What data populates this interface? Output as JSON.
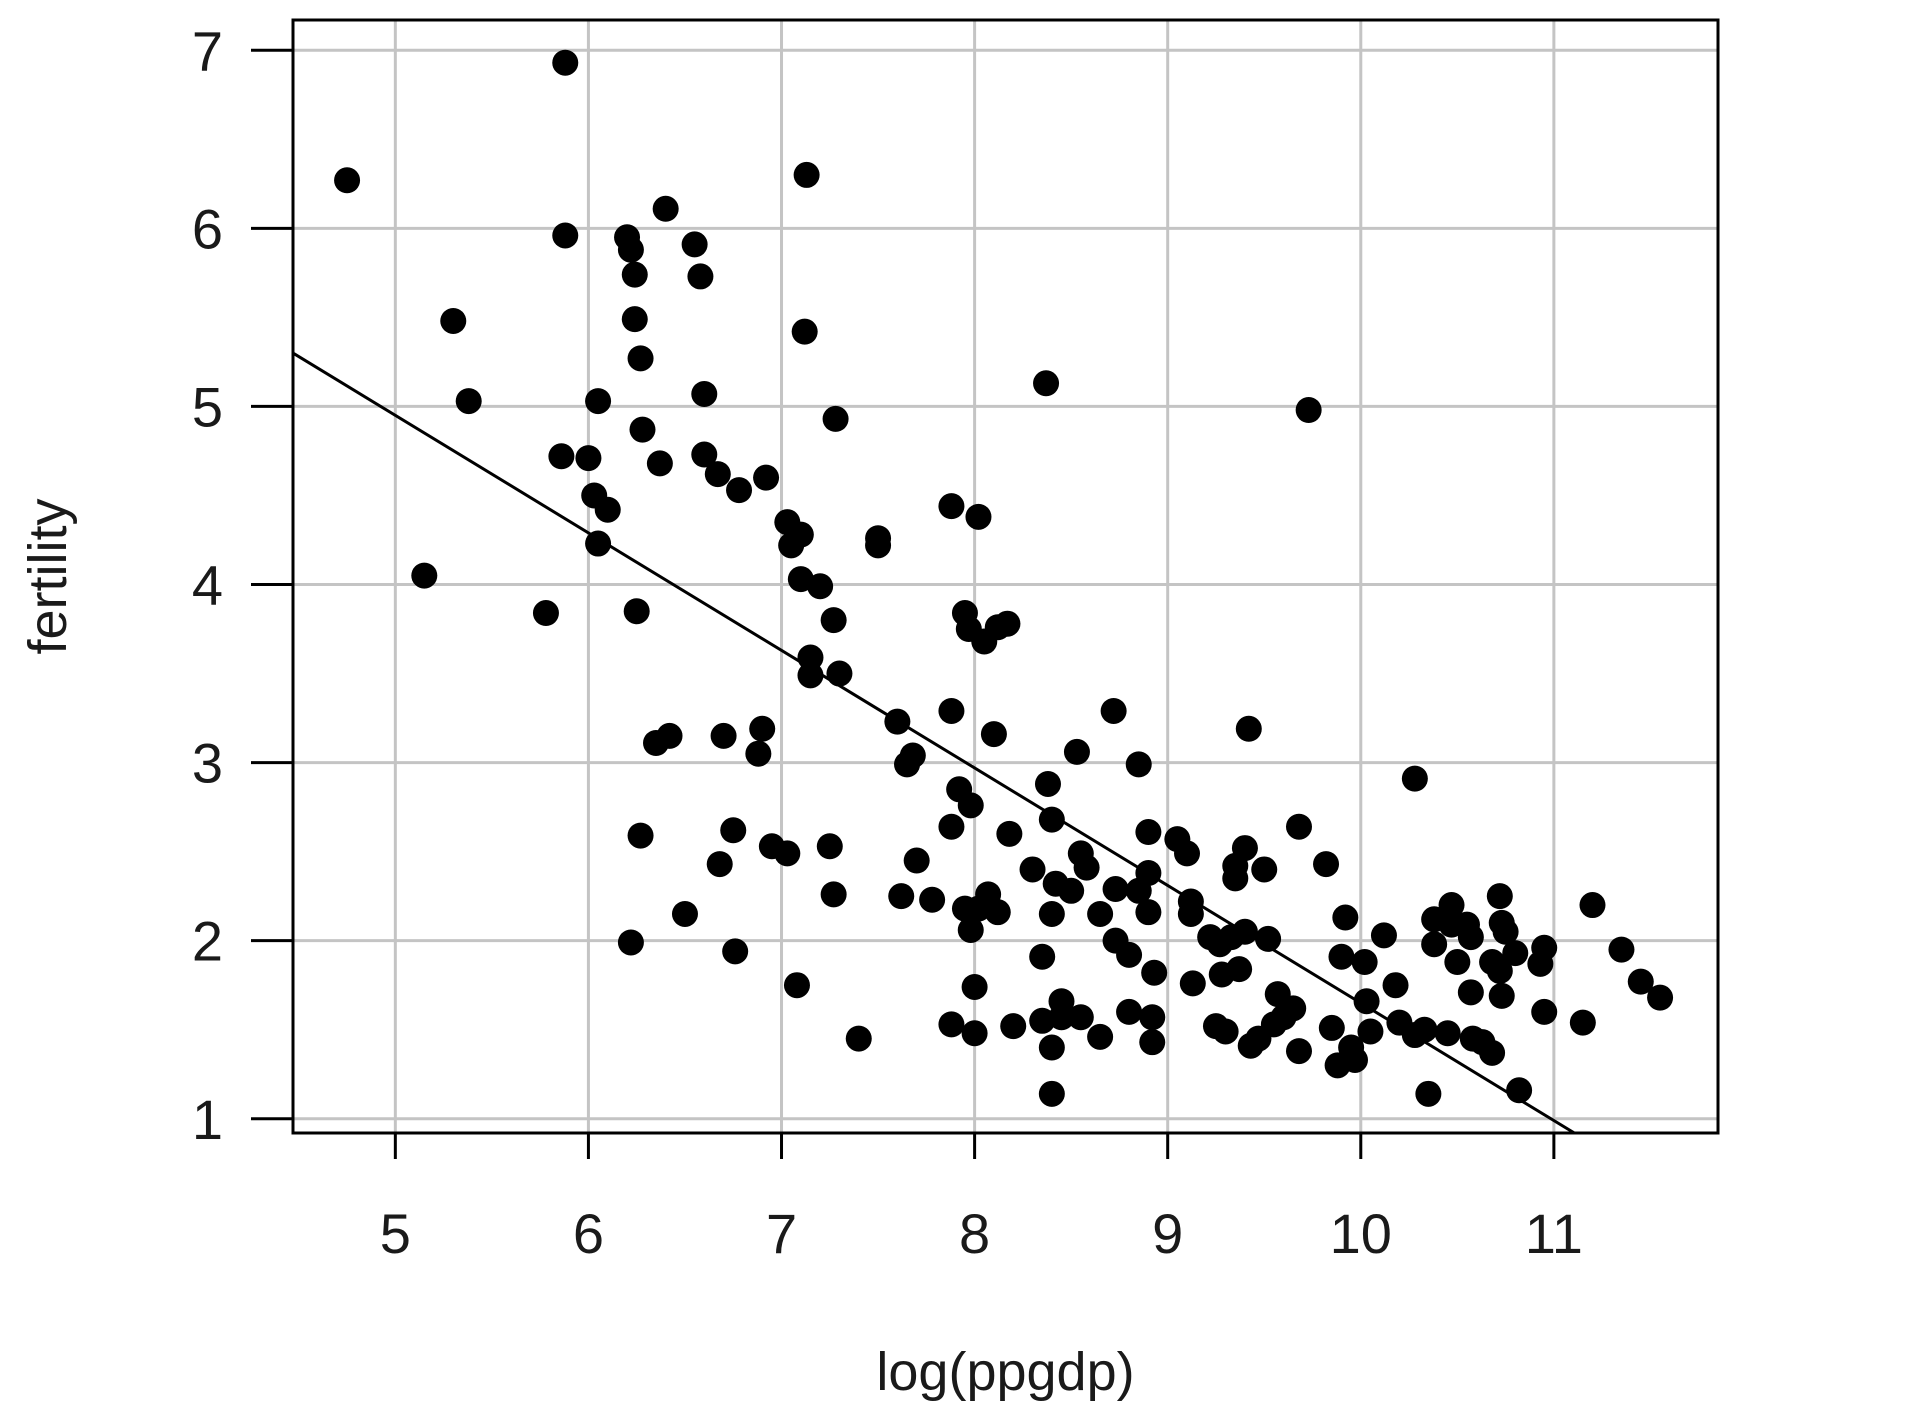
{
  "chart_data": {
    "type": "scatter",
    "title": "",
    "xlabel": "log(ppgdp)",
    "ylabel": "fertility",
    "xlim": [
      4.47,
      11.85
    ],
    "ylim": [
      0.92,
      7.17
    ],
    "x_ticks": [
      "5",
      "6",
      "7",
      "8",
      "9",
      "10",
      "11"
    ],
    "y_ticks": [
      "1",
      "2",
      "3",
      "4",
      "5",
      "6",
      "7"
    ],
    "grid": true,
    "colors": {
      "points": "#000000",
      "grid": "#c4c4c4",
      "frame": "#000000",
      "line": "#000000"
    },
    "fit_line": {
      "intercept": 8.25,
      "slope": -0.66
    },
    "series": [
      {
        "points": [
          [
            4.75,
            6.27
          ],
          [
            5.15,
            4.05
          ],
          [
            5.3,
            5.48
          ],
          [
            5.38,
            5.03
          ],
          [
            5.78,
            3.84
          ],
          [
            5.86,
            4.72
          ],
          [
            5.88,
            5.96
          ],
          [
            5.88,
            6.93
          ],
          [
            6.0,
            4.71
          ],
          [
            6.03,
            4.5
          ],
          [
            6.05,
            4.23
          ],
          [
            6.05,
            5.03
          ],
          [
            6.1,
            4.42
          ],
          [
            6.2,
            5.95
          ],
          [
            6.22,
            5.88
          ],
          [
            6.22,
            1.99
          ],
          [
            6.24,
            5.74
          ],
          [
            6.24,
            5.49
          ],
          [
            6.25,
            3.85
          ],
          [
            6.27,
            5.27
          ],
          [
            6.27,
            2.59
          ],
          [
            6.28,
            4.87
          ],
          [
            6.35,
            3.11
          ],
          [
            6.37,
            4.68
          ],
          [
            6.4,
            6.11
          ],
          [
            6.42,
            3.15
          ],
          [
            6.5,
            2.15
          ],
          [
            6.55,
            5.91
          ],
          [
            6.58,
            5.73
          ],
          [
            6.6,
            5.07
          ],
          [
            6.6,
            4.73
          ],
          [
            6.67,
            4.62
          ],
          [
            6.68,
            2.43
          ],
          [
            6.7,
            3.15
          ],
          [
            6.75,
            2.62
          ],
          [
            6.76,
            1.94
          ],
          [
            6.78,
            4.53
          ],
          [
            6.88,
            3.05
          ],
          [
            6.9,
            3.19
          ],
          [
            6.92,
            4.6
          ],
          [
            6.95,
            2.53
          ],
          [
            7.03,
            2.49
          ],
          [
            7.03,
            4.35
          ],
          [
            7.05,
            4.22
          ],
          [
            7.08,
            1.75
          ],
          [
            7.1,
            4.03
          ],
          [
            7.1,
            4.28
          ],
          [
            7.12,
            5.42
          ],
          [
            7.13,
            6.3
          ],
          [
            7.15,
            3.59
          ],
          [
            7.15,
            3.49
          ],
          [
            7.2,
            3.99
          ],
          [
            7.25,
            2.53
          ],
          [
            7.27,
            2.26
          ],
          [
            7.27,
            3.8
          ],
          [
            7.28,
            4.93
          ],
          [
            7.3,
            3.5
          ],
          [
            7.4,
            1.45
          ],
          [
            7.5,
            4.26
          ],
          [
            7.5,
            4.22
          ],
          [
            7.6,
            3.23
          ],
          [
            7.62,
            2.25
          ],
          [
            7.65,
            2.99
          ],
          [
            7.68,
            3.04
          ],
          [
            7.7,
            2.45
          ],
          [
            7.78,
            2.23
          ],
          [
            7.88,
            4.44
          ],
          [
            7.88,
            3.29
          ],
          [
            7.88,
            2.64
          ],
          [
            7.88,
            1.53
          ],
          [
            7.92,
            2.85
          ],
          [
            7.95,
            3.84
          ],
          [
            7.95,
            2.18
          ],
          [
            7.97,
            3.75
          ],
          [
            7.98,
            2.76
          ],
          [
            7.98,
            2.06
          ],
          [
            8.0,
            1.74
          ],
          [
            8.0,
            1.48
          ],
          [
            8.02,
            4.38
          ],
          [
            8.02,
            2.18
          ],
          [
            8.05,
            3.68
          ],
          [
            8.07,
            2.26
          ],
          [
            8.1,
            3.16
          ],
          [
            8.12,
            3.76
          ],
          [
            8.12,
            2.16
          ],
          [
            8.17,
            3.78
          ],
          [
            8.18,
            2.6
          ],
          [
            8.2,
            1.52
          ],
          [
            8.3,
            2.4
          ],
          [
            8.35,
            1.91
          ],
          [
            8.35,
            1.55
          ],
          [
            8.37,
            5.13
          ],
          [
            8.38,
            2.88
          ],
          [
            8.4,
            2.68
          ],
          [
            8.4,
            2.15
          ],
          [
            8.4,
            1.4
          ],
          [
            8.4,
            1.14
          ],
          [
            8.42,
            2.32
          ],
          [
            8.45,
            1.66
          ],
          [
            8.45,
            1.57
          ],
          [
            8.5,
            2.28
          ],
          [
            8.53,
            3.06
          ],
          [
            8.55,
            2.49
          ],
          [
            8.55,
            1.57
          ],
          [
            8.58,
            2.41
          ],
          [
            8.65,
            2.15
          ],
          [
            8.65,
            1.46
          ],
          [
            8.72,
            3.29
          ],
          [
            8.73,
            2.29
          ],
          [
            8.73,
            2.0
          ],
          [
            8.8,
            1.92
          ],
          [
            8.8,
            1.6
          ],
          [
            8.85,
            2.99
          ],
          [
            8.85,
            2.28
          ],
          [
            8.9,
            2.61
          ],
          [
            8.9,
            2.38
          ],
          [
            8.9,
            2.16
          ],
          [
            8.92,
            1.57
          ],
          [
            8.92,
            1.43
          ],
          [
            8.93,
            1.82
          ],
          [
            9.05,
            2.57
          ],
          [
            9.1,
            2.49
          ],
          [
            9.12,
            2.22
          ],
          [
            9.12,
            2.15
          ],
          [
            9.13,
            1.76
          ],
          [
            9.22,
            2.02
          ],
          [
            9.25,
            1.52
          ],
          [
            9.27,
            1.98
          ],
          [
            9.28,
            1.81
          ],
          [
            9.3,
            1.49
          ],
          [
            9.33,
            2.02
          ],
          [
            9.35,
            2.42
          ],
          [
            9.35,
            2.35
          ],
          [
            9.37,
            1.84
          ],
          [
            9.4,
            2.52
          ],
          [
            9.4,
            2.05
          ],
          [
            9.42,
            3.19
          ],
          [
            9.43,
            1.41
          ],
          [
            9.47,
            1.45
          ],
          [
            9.5,
            2.4
          ],
          [
            9.52,
            2.01
          ],
          [
            9.55,
            1.53
          ],
          [
            9.57,
            1.7
          ],
          [
            9.6,
            1.57
          ],
          [
            9.65,
            1.62
          ],
          [
            9.68,
            2.64
          ],
          [
            9.68,
            1.38
          ],
          [
            9.73,
            4.98
          ],
          [
            9.82,
            2.43
          ],
          [
            9.85,
            1.51
          ],
          [
            9.88,
            1.3
          ],
          [
            9.9,
            1.91
          ],
          [
            9.92,
            2.13
          ],
          [
            9.95,
            1.4
          ],
          [
            9.97,
            1.33
          ],
          [
            10.02,
            1.88
          ],
          [
            10.03,
            1.66
          ],
          [
            10.05,
            1.49
          ],
          [
            10.12,
            2.03
          ],
          [
            10.18,
            1.75
          ],
          [
            10.2,
            1.54
          ],
          [
            10.28,
            1.47
          ],
          [
            10.28,
            2.91
          ],
          [
            10.33,
            1.5
          ],
          [
            10.35,
            1.14
          ],
          [
            10.38,
            2.12
          ],
          [
            10.38,
            1.98
          ],
          [
            10.45,
            1.48
          ],
          [
            10.47,
            2.2
          ],
          [
            10.47,
            2.09
          ],
          [
            10.5,
            1.88
          ],
          [
            10.55,
            2.09
          ],
          [
            10.57,
            2.02
          ],
          [
            10.57,
            1.71
          ],
          [
            10.58,
            1.45
          ],
          [
            10.63,
            1.43
          ],
          [
            10.68,
            1.88
          ],
          [
            10.68,
            1.37
          ],
          [
            10.72,
            2.25
          ],
          [
            10.72,
            1.83
          ],
          [
            10.73,
            2.1
          ],
          [
            10.73,
            1.69
          ],
          [
            10.75,
            2.05
          ],
          [
            10.8,
            1.93
          ],
          [
            10.82,
            1.16
          ],
          [
            10.93,
            1.87
          ],
          [
            10.95,
            1.96
          ],
          [
            10.95,
            1.6
          ],
          [
            11.15,
            1.54
          ],
          [
            11.2,
            2.2
          ],
          [
            11.35,
            1.95
          ],
          [
            11.45,
            1.77
          ],
          [
            11.55,
            1.68
          ]
        ]
      }
    ]
  }
}
